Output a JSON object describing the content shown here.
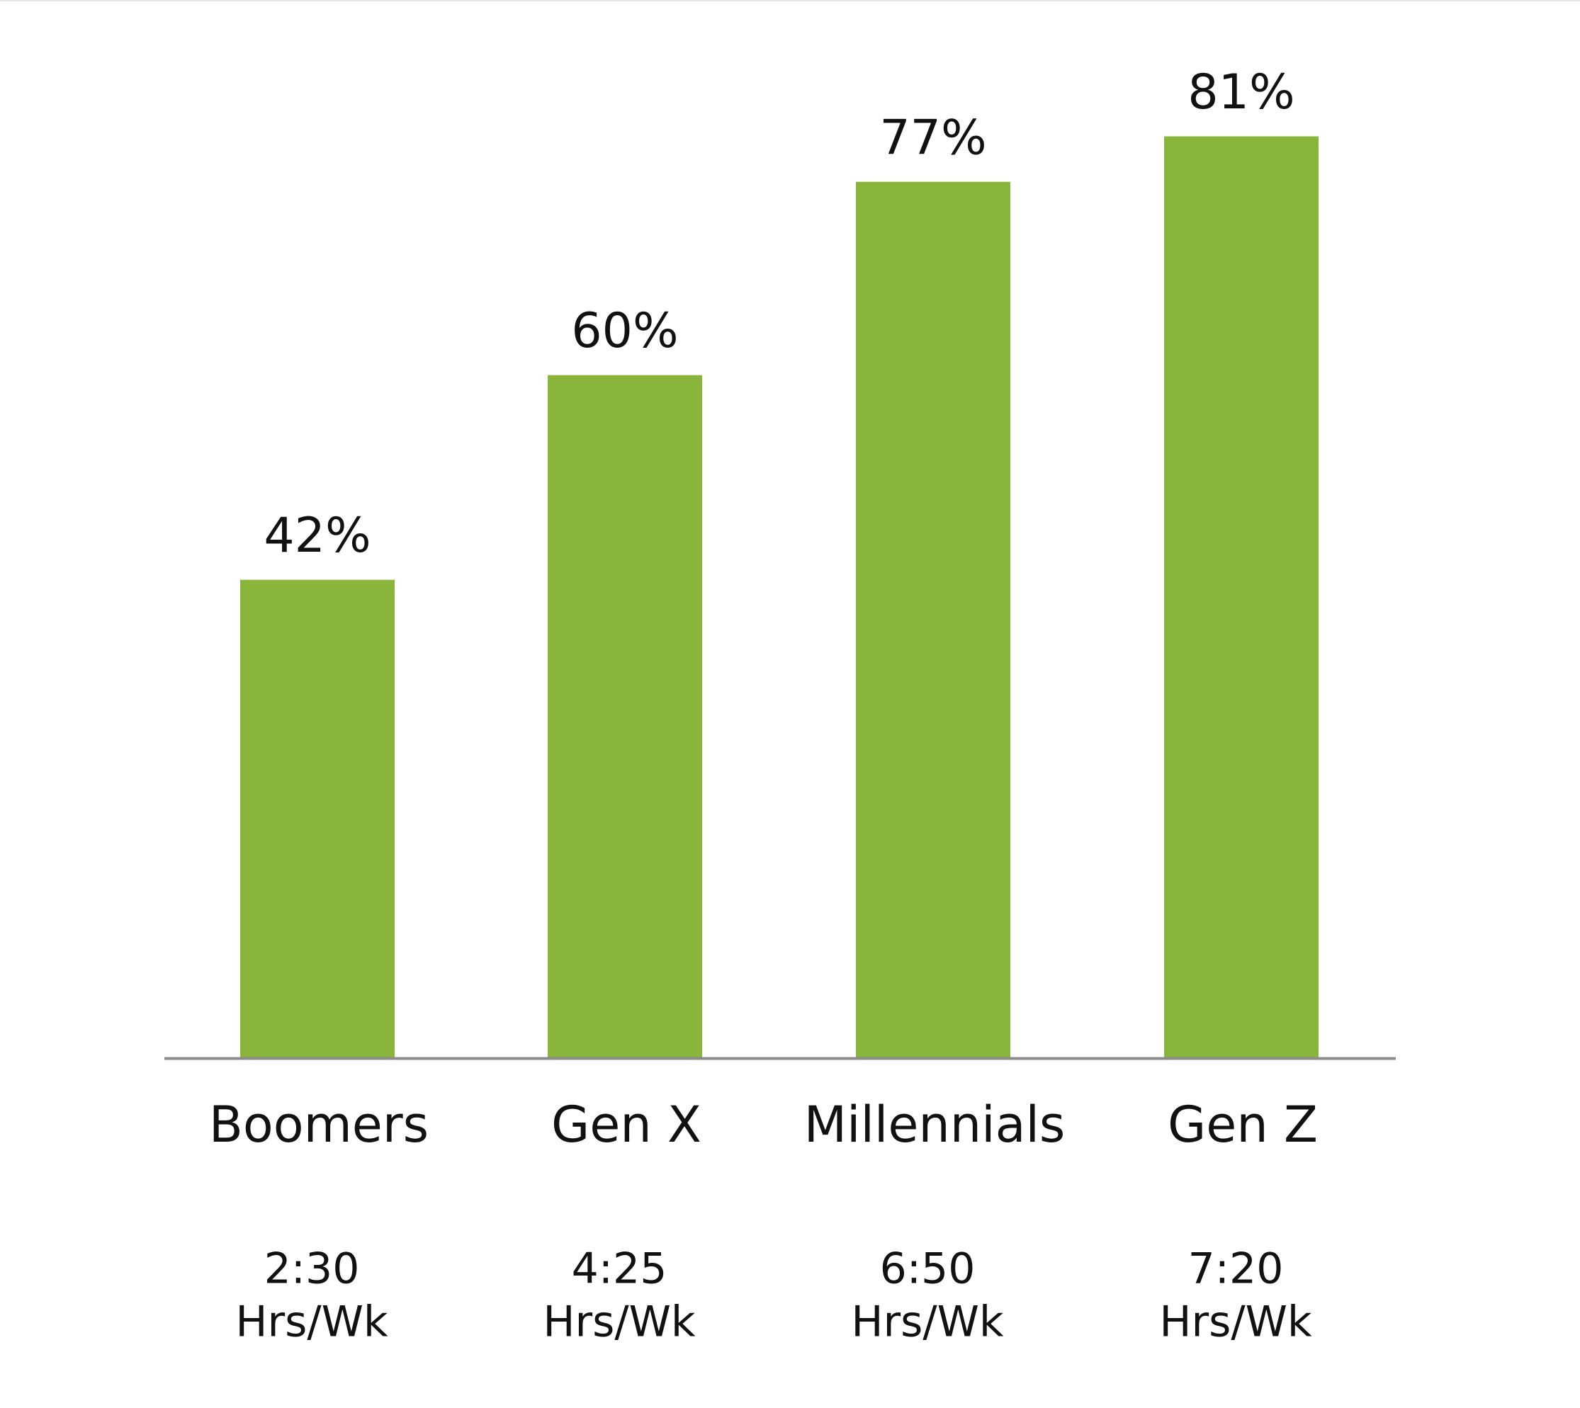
{
  "chart_data": {
    "type": "bar",
    "categories": [
      "Boomers",
      "Gen X",
      "Millennials",
      "Gen Z"
    ],
    "values": [
      42,
      60,
      77,
      81
    ],
    "value_labels": [
      "42%",
      "60%",
      "77%",
      "81%"
    ],
    "hours": [
      "2:30",
      "4:25",
      "6:50",
      "7:20"
    ],
    "hours_unit": "Hrs/Wk",
    "color": "#88b53a",
    "ylim": [
      0,
      90
    ]
  }
}
